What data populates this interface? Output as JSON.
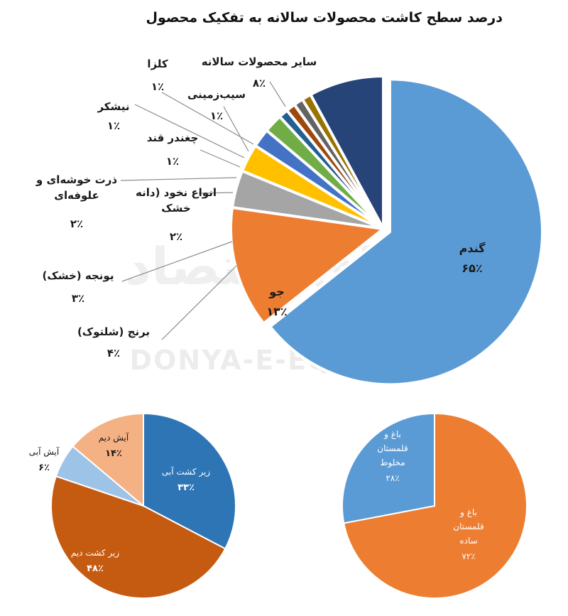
{
  "title": "درصد سطح کاشت محصولات سالانه به تفکیک محصول",
  "watermark": {
    "text_fa": "دنیای اقتصاد",
    "text_en": "DONYA-E-EQTESAD"
  },
  "chart_data": [
    {
      "type": "pie",
      "title": "درصد سطح کاشت محصولات سالانه به تفکیک محصول",
      "slices": [
        {
          "name": "گندم",
          "value": 65,
          "label": "۶۵٪",
          "color": "#5b9bd5",
          "exploded": true
        },
        {
          "name": "جو",
          "value": 13,
          "label": "۱۳٪",
          "color": "#ed7d31"
        },
        {
          "name": "برنج (شلتوک)",
          "value": 4,
          "label": "۴٪",
          "color": "#a5a5a5"
        },
        {
          "name": "یونجه (خشک)",
          "value": 3,
          "label": "۳٪",
          "color": "#ffc000"
        },
        {
          "name": "انواع نخود (دانه خشک)",
          "value": 2,
          "label": "۲٪",
          "color": "#4472c4"
        },
        {
          "name": "ذرت خوشه‌ای و علوفه‌ای",
          "value": 2,
          "label": "۲٪",
          "color": "#70ad47"
        },
        {
          "name": "چغندر قند",
          "value": 1,
          "label": "۱٪",
          "color": "#255e91"
        },
        {
          "name": "نیشکر",
          "value": 1,
          "label": "۱٪",
          "color": "#9e480e"
        },
        {
          "name": "سیب‌زمینی",
          "value": 1,
          "label": "۱٪",
          "color": "#636363"
        },
        {
          "name": "کلزا",
          "value": 1,
          "label": "۱٪",
          "color": "#997300"
        },
        {
          "name": "سایر محصولات سالانه",
          "value": 8,
          "label": "۸٪",
          "color": "#264478"
        }
      ]
    },
    {
      "type": "pie",
      "slices": [
        {
          "name": "زیر کشت آبی",
          "value": 33,
          "label": "۳۳٪",
          "color": "#2e75b6"
        },
        {
          "name": "زیر کشت دیم",
          "value": 48,
          "label": "۴۸٪",
          "color": "#c55a11"
        },
        {
          "name": "آیش آبی",
          "value": 6,
          "label": "۶٪",
          "color": "#9dc3e6"
        },
        {
          "name": "آیش دیم",
          "value": 14,
          "label": "۱۴٪",
          "color": "#f4b183"
        }
      ]
    },
    {
      "type": "pie",
      "slices": [
        {
          "name": "باغ و قلمستان ساده",
          "value": 72,
          "label": "۷۲٪",
          "color": "#ed7d31"
        },
        {
          "name": "باغ و قلمستان مخلوط",
          "value": 28,
          "label": "۲۸٪",
          "color": "#5b9bd5"
        }
      ]
    }
  ]
}
